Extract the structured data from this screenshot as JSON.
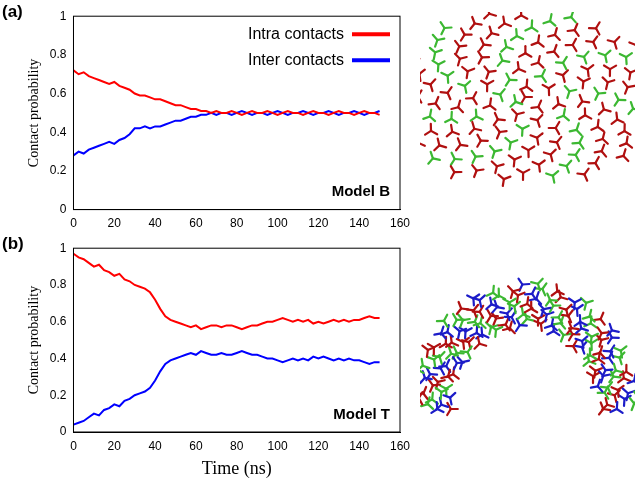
{
  "chart_data": [
    {
      "type": "line",
      "panel_label": "(a)",
      "y_label": "Contact probability",
      "annotations": [
        "Model B"
      ],
      "legend": "upper right",
      "x": [
        0,
        2.5,
        5,
        7.5,
        10,
        12.5,
        15,
        17.5,
        20,
        22.5,
        25,
        27.5,
        30,
        32.5,
        35,
        37.5,
        40,
        42.5,
        45,
        47.5,
        50,
        52.5,
        55,
        57.5,
        60,
        62.5,
        65,
        67.5,
        70,
        72.5,
        75,
        77.5,
        80,
        82.5,
        85,
        87.5,
        90,
        92.5,
        95,
        97.5,
        100,
        102.5,
        105,
        107.5,
        110,
        112.5,
        115,
        117.5,
        120,
        122.5,
        125,
        127.5,
        130,
        132.5,
        135,
        137.5,
        140,
        142.5,
        145,
        147.5,
        150
      ],
      "series": [
        {
          "name": "Intra contacts",
          "color": "#ff0000",
          "values": [
            0.72,
            0.7,
            0.71,
            0.69,
            0.68,
            0.67,
            0.66,
            0.65,
            0.66,
            0.64,
            0.63,
            0.62,
            0.6,
            0.59,
            0.59,
            0.58,
            0.57,
            0.57,
            0.56,
            0.55,
            0.54,
            0.54,
            0.53,
            0.52,
            0.52,
            0.51,
            0.51,
            0.5,
            0.51,
            0.5,
            0.5,
            0.51,
            0.5,
            0.49,
            0.5,
            0.51,
            0.5,
            0.5,
            0.51,
            0.5,
            0.49,
            0.5,
            0.51,
            0.5,
            0.5,
            0.49,
            0.5,
            0.51,
            0.5,
            0.5,
            0.49,
            0.5,
            0.51,
            0.5,
            0.5,
            0.49,
            0.5,
            0.51,
            0.5,
            0.5,
            0.49
          ]
        },
        {
          "name": "Inter contacts",
          "color": "#0000ff",
          "values": [
            0.28,
            0.3,
            0.29,
            0.31,
            0.32,
            0.33,
            0.34,
            0.35,
            0.34,
            0.36,
            0.37,
            0.39,
            0.42,
            0.42,
            0.43,
            0.42,
            0.43,
            0.43,
            0.44,
            0.45,
            0.46,
            0.46,
            0.47,
            0.48,
            0.48,
            0.49,
            0.49,
            0.5,
            0.49,
            0.5,
            0.5,
            0.49,
            0.5,
            0.51,
            0.5,
            0.49,
            0.5,
            0.5,
            0.49,
            0.5,
            0.51,
            0.5,
            0.49,
            0.5,
            0.5,
            0.51,
            0.5,
            0.49,
            0.5,
            0.5,
            0.51,
            0.5,
            0.49,
            0.5,
            0.5,
            0.51,
            0.5,
            0.49,
            0.5,
            0.5,
            0.51
          ]
        }
      ],
      "xlim": [
        0,
        160
      ],
      "xticks": [
        0,
        20,
        40,
        60,
        80,
        100,
        120,
        140,
        160
      ],
      "ylim": [
        0,
        1
      ],
      "yticks": [
        0,
        0.2,
        0.4,
        0.6,
        0.8,
        1
      ],
      "grid": false
    },
    {
      "type": "line",
      "panel_label": "(b)",
      "y_label": "Contact probability",
      "x_label": "Time (ns)",
      "annotations": [
        "Model T"
      ],
      "x": [
        0,
        2.5,
        5,
        7.5,
        10,
        12.5,
        15,
        17.5,
        20,
        22.5,
        25,
        27.5,
        30,
        32.5,
        35,
        37.5,
        40,
        42.5,
        45,
        47.5,
        50,
        52.5,
        55,
        57.5,
        60,
        62.5,
        65,
        67.5,
        70,
        72.5,
        75,
        77.5,
        80,
        82.5,
        85,
        87.5,
        90,
        92.5,
        95,
        97.5,
        100,
        102.5,
        105,
        107.5,
        110,
        112.5,
        115,
        117.5,
        120,
        122.5,
        125,
        127.5,
        130,
        132.5,
        135,
        137.5,
        140,
        142.5,
        145,
        147.5,
        150
      ],
      "series": [
        {
          "name": "Intra contacts",
          "color": "#ff0000",
          "values": [
            0.97,
            0.95,
            0.94,
            0.92,
            0.9,
            0.91,
            0.88,
            0.87,
            0.85,
            0.86,
            0.83,
            0.82,
            0.8,
            0.79,
            0.78,
            0.76,
            0.72,
            0.67,
            0.63,
            0.61,
            0.6,
            0.59,
            0.58,
            0.57,
            0.58,
            0.56,
            0.57,
            0.58,
            0.58,
            0.57,
            0.58,
            0.58,
            0.57,
            0.56,
            0.57,
            0.58,
            0.58,
            0.59,
            0.6,
            0.6,
            0.61,
            0.62,
            0.61,
            0.6,
            0.61,
            0.6,
            0.61,
            0.59,
            0.6,
            0.59,
            0.6,
            0.61,
            0.6,
            0.61,
            0.6,
            0.61,
            0.61,
            0.62,
            0.63,
            0.62,
            0.62
          ]
        },
        {
          "name": "Inter contacts",
          "color": "#0000ff",
          "values": [
            0.04,
            0.05,
            0.06,
            0.08,
            0.1,
            0.09,
            0.12,
            0.13,
            0.15,
            0.14,
            0.17,
            0.18,
            0.2,
            0.21,
            0.22,
            0.24,
            0.28,
            0.33,
            0.37,
            0.39,
            0.4,
            0.41,
            0.42,
            0.43,
            0.42,
            0.44,
            0.43,
            0.42,
            0.42,
            0.43,
            0.42,
            0.42,
            0.43,
            0.44,
            0.43,
            0.42,
            0.42,
            0.41,
            0.4,
            0.4,
            0.39,
            0.38,
            0.39,
            0.4,
            0.39,
            0.4,
            0.39,
            0.41,
            0.4,
            0.41,
            0.4,
            0.39,
            0.4,
            0.39,
            0.4,
            0.39,
            0.39,
            0.38,
            0.37,
            0.38,
            0.38
          ]
        }
      ],
      "xlim": [
        0,
        160
      ],
      "xticks": [
        0,
        20,
        40,
        60,
        80,
        100,
        120,
        140,
        160
      ],
      "ylim": [
        0,
        1
      ],
      "yticks": [
        0,
        0.2,
        0.4,
        0.6,
        0.8,
        1
      ],
      "grid": false
    }
  ]
}
